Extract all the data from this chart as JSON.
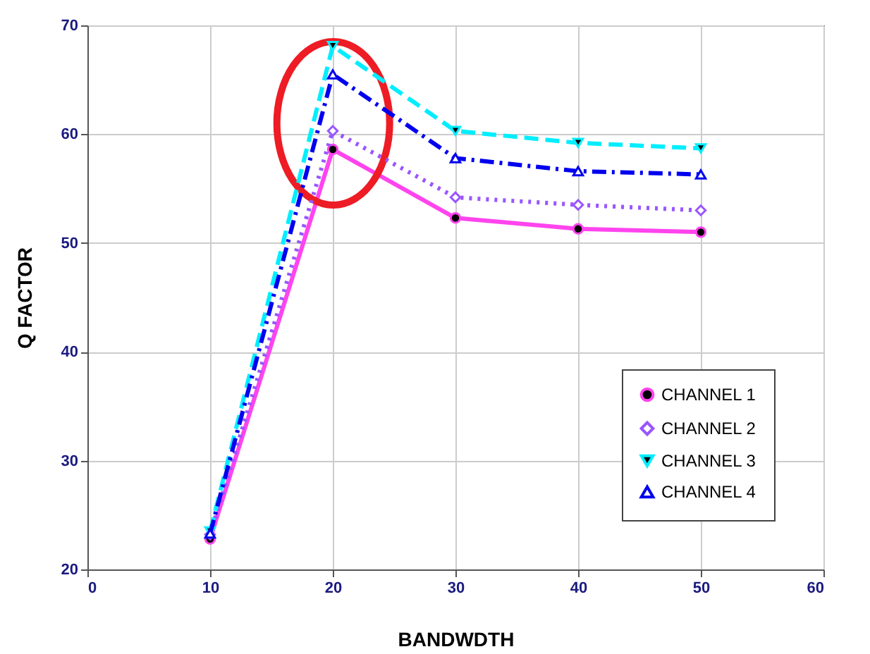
{
  "chart_data": {
    "type": "line",
    "xlabel": "BANDWDTH",
    "ylabel": "Q FACTOR",
    "x": [
      10,
      20,
      30,
      40,
      50
    ],
    "series": [
      {
        "name": "CHANNEL 1",
        "color": "#ff44ee",
        "marker": "circle",
        "line_style": "solid",
        "values": [
          22.8,
          58.6,
          52.3,
          51.3,
          51.0
        ]
      },
      {
        "name": "CHANNEL 2",
        "color": "#9955ff",
        "marker": "diamond",
        "line_style": "dotted",
        "values": [
          23.2,
          60.3,
          54.2,
          53.5,
          53.0
        ]
      },
      {
        "name": "CHANNEL 3",
        "color": "#00eeff",
        "marker": "triangle-down",
        "line_style": "dashed",
        "values": [
          23.5,
          68.1,
          60.3,
          59.2,
          58.7
        ]
      },
      {
        "name": "CHANNEL 4",
        "color": "#0000ee",
        "marker": "triangle",
        "line_style": "dashdot",
        "values": [
          23.3,
          65.5,
          57.8,
          56.6,
          56.3
        ]
      }
    ],
    "xlim": [
      0,
      60
    ],
    "xticks": [
      0,
      10,
      20,
      30,
      40,
      50,
      60
    ],
    "ylim": [
      20,
      70
    ],
    "yticks": [
      20,
      30,
      40,
      50,
      60,
      70
    ],
    "grid": true,
    "legend": "bottom right"
  }
}
